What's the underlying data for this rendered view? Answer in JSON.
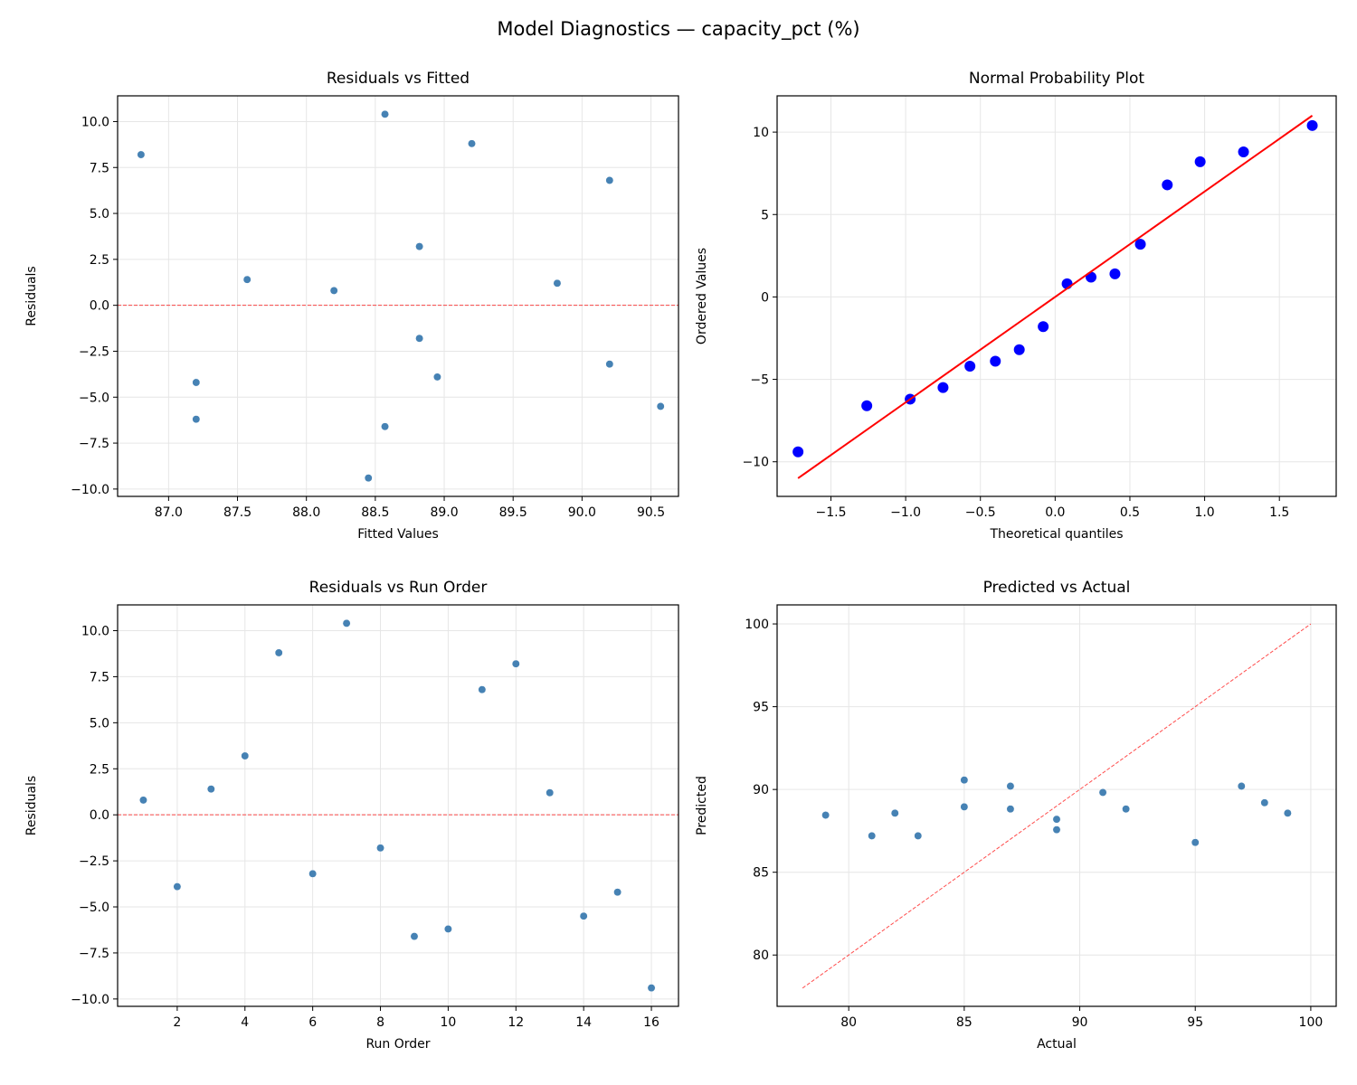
{
  "suptitle": "Model Diagnostics — capacity_pct (%)",
  "colors": {
    "points": "#4682b4",
    "qq_points": "#0000ff",
    "fit_line": "#ff0000",
    "ref_line": "#ff0000",
    "grid": "#e6e6e6"
  },
  "chart_data": [
    {
      "type": "scatter",
      "title": "Residuals vs Fitted",
      "xlabel": "Fitted Values",
      "ylabel": "Residuals",
      "xlim": [
        86.63,
        90.7
      ],
      "ylim": [
        -10.4,
        11.4
      ],
      "xticks": [
        87.0,
        87.5,
        88.0,
        88.5,
        89.0,
        89.5,
        90.0,
        90.5
      ],
      "xtick_labels": [
        "87.0",
        "87.5",
        "88.0",
        "88.5",
        "89.0",
        "89.5",
        "90.0",
        "90.5"
      ],
      "yticks": [
        -10,
        -7.5,
        -5,
        -2.5,
        0,
        2.5,
        5,
        7.5,
        10
      ],
      "ytick_labels": [
        "−10.0",
        "−7.5",
        "−5.0",
        "−2.5",
        "0.0",
        "2.5",
        "5.0",
        "7.5",
        "10.0"
      ],
      "grid": true,
      "x": [
        88.2,
        88.95,
        87.57,
        88.82,
        89.2,
        90.2,
        88.57,
        88.82,
        88.57,
        87.2,
        90.2,
        86.8,
        89.82,
        90.57,
        87.2,
        88.45
      ],
      "y": [
        0.8,
        -3.9,
        1.4,
        3.2,
        8.8,
        -3.2,
        10.4,
        -1.8,
        -6.6,
        -6.2,
        6.8,
        8.2,
        1.2,
        -5.5,
        -4.2,
        -9.4
      ],
      "reference_line": {
        "type": "horizontal",
        "y": 0,
        "style": "dashed"
      }
    },
    {
      "type": "scatter",
      "title": "Normal Probability Plot",
      "xlabel": "Theoretical quantiles",
      "ylabel": "Ordered Values",
      "xlim": [
        -1.86,
        1.88
      ],
      "ylim": [
        -12.1,
        12.2
      ],
      "xticks": [
        -1.5,
        -1.0,
        -0.5,
        0.0,
        0.5,
        1.0,
        1.5
      ],
      "xtick_labels": [
        "−1.5",
        "−1.0",
        "−0.5",
        "0.0",
        "0.5",
        "1.0",
        "1.5"
      ],
      "yticks": [
        -10,
        -5,
        0,
        5,
        10
      ],
      "ytick_labels": [
        "−10",
        "−5",
        "0",
        "5",
        "10"
      ],
      "grid": true,
      "x": [
        -1.72,
        -1.26,
        -0.97,
        -0.75,
        -0.57,
        -0.4,
        -0.24,
        -0.08,
        0.08,
        0.24,
        0.4,
        0.57,
        0.75,
        0.97,
        1.26,
        1.72
      ],
      "y": [
        -9.4,
        -6.6,
        -6.2,
        -5.5,
        -4.2,
        -3.9,
        -3.2,
        -1.8,
        0.8,
        1.2,
        1.4,
        3.2,
        6.8,
        8.2,
        8.8,
        10.4
      ],
      "reference_line": {
        "type": "segment",
        "x": [
          -1.72,
          1.72
        ],
        "y": [
          -11.0,
          11.0
        ],
        "style": "solid"
      }
    },
    {
      "type": "scatter",
      "title": "Residuals vs Run Order",
      "xlabel": "Run Order",
      "ylabel": "Residuals",
      "xlim": [
        0.24,
        16.8
      ],
      "ylim": [
        -10.4,
        11.4
      ],
      "xticks": [
        2,
        4,
        6,
        8,
        10,
        12,
        14,
        16
      ],
      "xtick_labels": [
        "2",
        "4",
        "6",
        "8",
        "10",
        "12",
        "14",
        "16"
      ],
      "yticks": [
        -10,
        -7.5,
        -5,
        -2.5,
        0,
        2.5,
        5,
        7.5,
        10
      ],
      "ytick_labels": [
        "−10.0",
        "−7.5",
        "−5.0",
        "−2.5",
        "0.0",
        "2.5",
        "5.0",
        "7.5",
        "10.0"
      ],
      "grid": true,
      "x": [
        1,
        2,
        3,
        4,
        5,
        6,
        7,
        8,
        9,
        10,
        11,
        12,
        13,
        14,
        15,
        16
      ],
      "y": [
        0.8,
        -3.9,
        1.4,
        3.2,
        8.8,
        -3.2,
        10.4,
        -1.8,
        -6.6,
        -6.2,
        6.8,
        8.2,
        1.2,
        -5.5,
        -4.2,
        -9.4
      ],
      "reference_line": {
        "type": "horizontal",
        "y": 0,
        "style": "dashed"
      }
    },
    {
      "type": "scatter",
      "title": "Predicted vs Actual",
      "xlabel": "Actual",
      "ylabel": "Predicted",
      "xlim": [
        76.9,
        101.1
      ],
      "ylim": [
        76.9,
        101.15
      ],
      "xticks": [
        80,
        85,
        90,
        95,
        100
      ],
      "xtick_labels": [
        "80",
        "85",
        "90",
        "95",
        "100"
      ],
      "yticks": [
        80,
        85,
        90,
        95,
        100
      ],
      "ytick_labels": [
        "80",
        "85",
        "90",
        "95",
        "100"
      ],
      "grid": true,
      "x": [
        89,
        85,
        89,
        92,
        98,
        87,
        99,
        87,
        82,
        81,
        97,
        95,
        91,
        85,
        83,
        79
      ],
      "y": [
        88.2,
        88.95,
        87.57,
        88.82,
        89.2,
        90.2,
        88.57,
        88.82,
        88.57,
        87.2,
        90.2,
        86.8,
        89.82,
        90.57,
        87.2,
        88.45
      ],
      "reference_line": {
        "type": "segment",
        "x": [
          78,
          100
        ],
        "y": [
          78,
          100
        ],
        "style": "dashed"
      }
    }
  ]
}
